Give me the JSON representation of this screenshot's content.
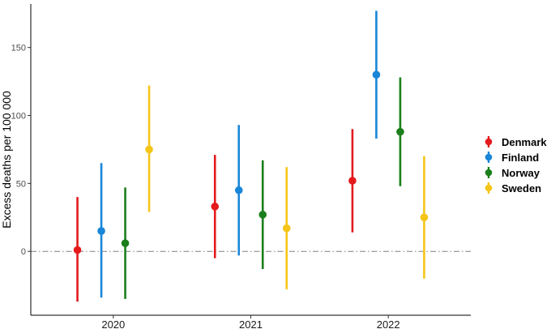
{
  "chart_data": {
    "type": "scatter",
    "subtype": "point-with-error-bars",
    "ylabel": "Excess deaths per 100 000",
    "xlabel": "",
    "categories": [
      "2020",
      "2021",
      "2022"
    ],
    "yticks": [
      0,
      50,
      100,
      150
    ],
    "ylim": [
      -47,
      182
    ],
    "reference_line": {
      "y": 0,
      "style": "dash-dot",
      "color": "#808080"
    },
    "grid": false,
    "legend_position": "right",
    "series": [
      {
        "name": "Denmark",
        "color": "#E41A1C",
        "values": [
          1,
          33,
          52
        ],
        "lower": [
          -37,
          -5,
          14
        ],
        "upper": [
          40,
          71,
          90
        ]
      },
      {
        "name": "Finland",
        "color": "#1A86D8",
        "values": [
          15,
          45,
          130
        ],
        "lower": [
          -34,
          -3,
          83
        ],
        "upper": [
          65,
          93,
          177
        ]
      },
      {
        "name": "Norway",
        "color": "#1B7F1B",
        "values": [
          6,
          27,
          88
        ],
        "lower": [
          -35,
          -13,
          48
        ],
        "upper": [
          47,
          67,
          128
        ]
      },
      {
        "name": "Sweden",
        "color": "#F5C518",
        "values": [
          75,
          17,
          25
        ],
        "lower": [
          29,
          -28,
          -20
        ],
        "upper": [
          122,
          62,
          70
        ]
      }
    ]
  }
}
